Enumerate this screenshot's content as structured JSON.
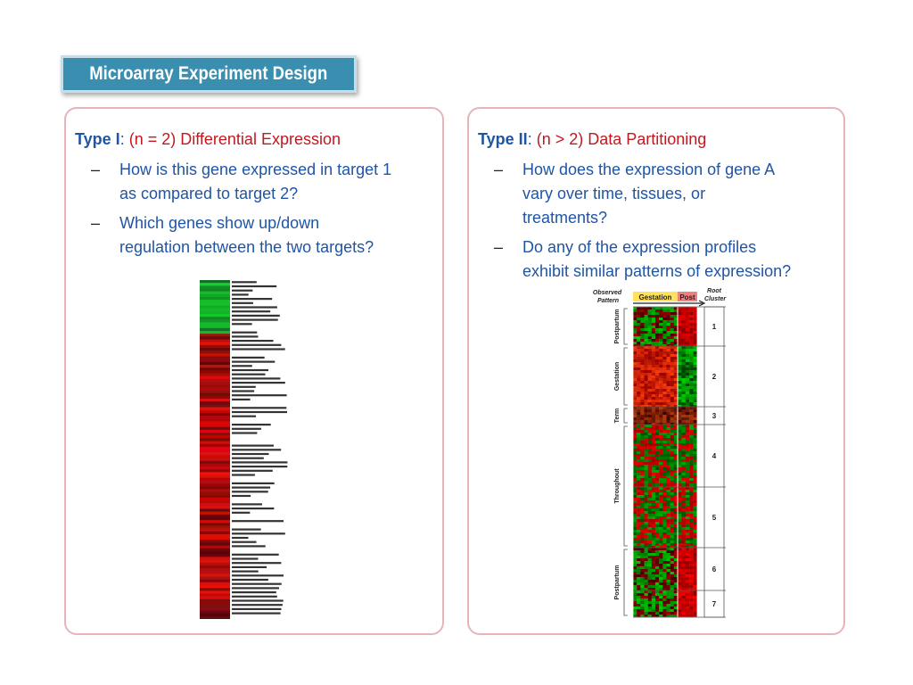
{
  "slide": {
    "title": "Microarray Experiment Design"
  },
  "panels": [
    {
      "type_label": "Type I",
      "colon": ":",
      "condition": " (n = 2) Differential Expression",
      "bullets": [
        {
          "dash": "–",
          "line1": "How is this gene expressed in target 1",
          "line2": "as compared to target 2?"
        },
        {
          "dash": "–",
          "line1": "Which genes show up/down",
          "line2": "regulation between the two targets?"
        }
      ]
    },
    {
      "type_label": "Type II",
      "colon": ":",
      "condition": " (n > 2) Data Partitioning",
      "bullets": [
        {
          "dash": "–",
          "line1": "How does the expression of gene A",
          "line2": "vary over time, tissues, or",
          "line3": "treatments?"
        },
        {
          "dash": "–",
          "line1": "Do any of the expression profiles",
          "line2": "exhibit similar patterns of expression?"
        }
      ]
    }
  ],
  "heatmap1": {
    "gene_labels_legible": false
  },
  "heatmap2": {
    "observed_pattern_label": "Observed Pattern",
    "gestation_label": "Gestation",
    "post_label": "Post",
    "root_cluster_label": "Root Cluster",
    "patterns": [
      "Postpartum",
      "Gestation",
      "Term",
      "Throughout",
      "Postpartum"
    ],
    "clusters": [
      "1",
      "2",
      "3",
      "4",
      "5",
      "6",
      "7"
    ],
    "colors": {
      "up": "#e02020",
      "down": "#20c020",
      "neutral": "#201010",
      "gestation_bg": "#ffe15a",
      "post_bg": "#f08080"
    }
  }
}
